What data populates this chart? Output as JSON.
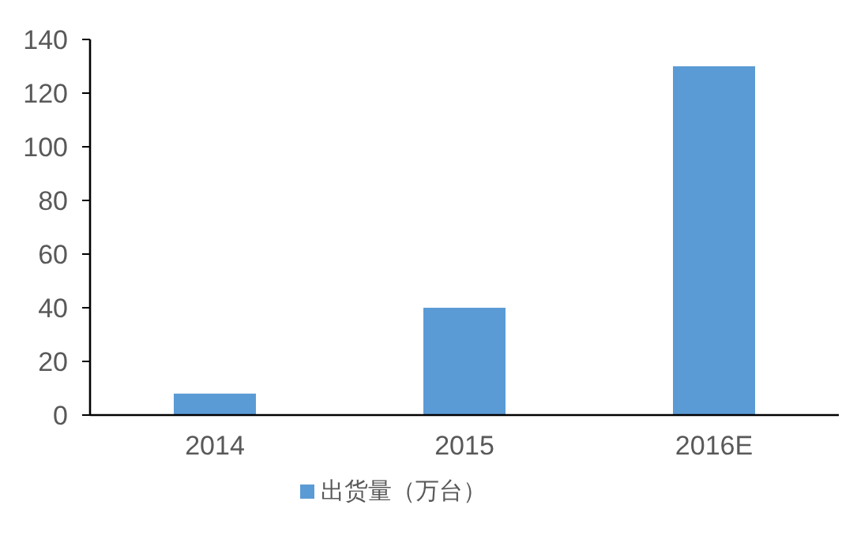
{
  "chart_data": {
    "type": "bar",
    "categories": [
      "2014",
      "2015",
      "2016E"
    ],
    "series": [
      {
        "name": "出货量（万台）",
        "color": "#5b9bd5",
        "values": [
          8,
          40,
          130
        ]
      }
    ],
    "ylim": [
      0,
      140
    ],
    "yticks": [
      0,
      20,
      40,
      60,
      80,
      100,
      120,
      140
    ],
    "grid": false,
    "legend": "bottom"
  }
}
